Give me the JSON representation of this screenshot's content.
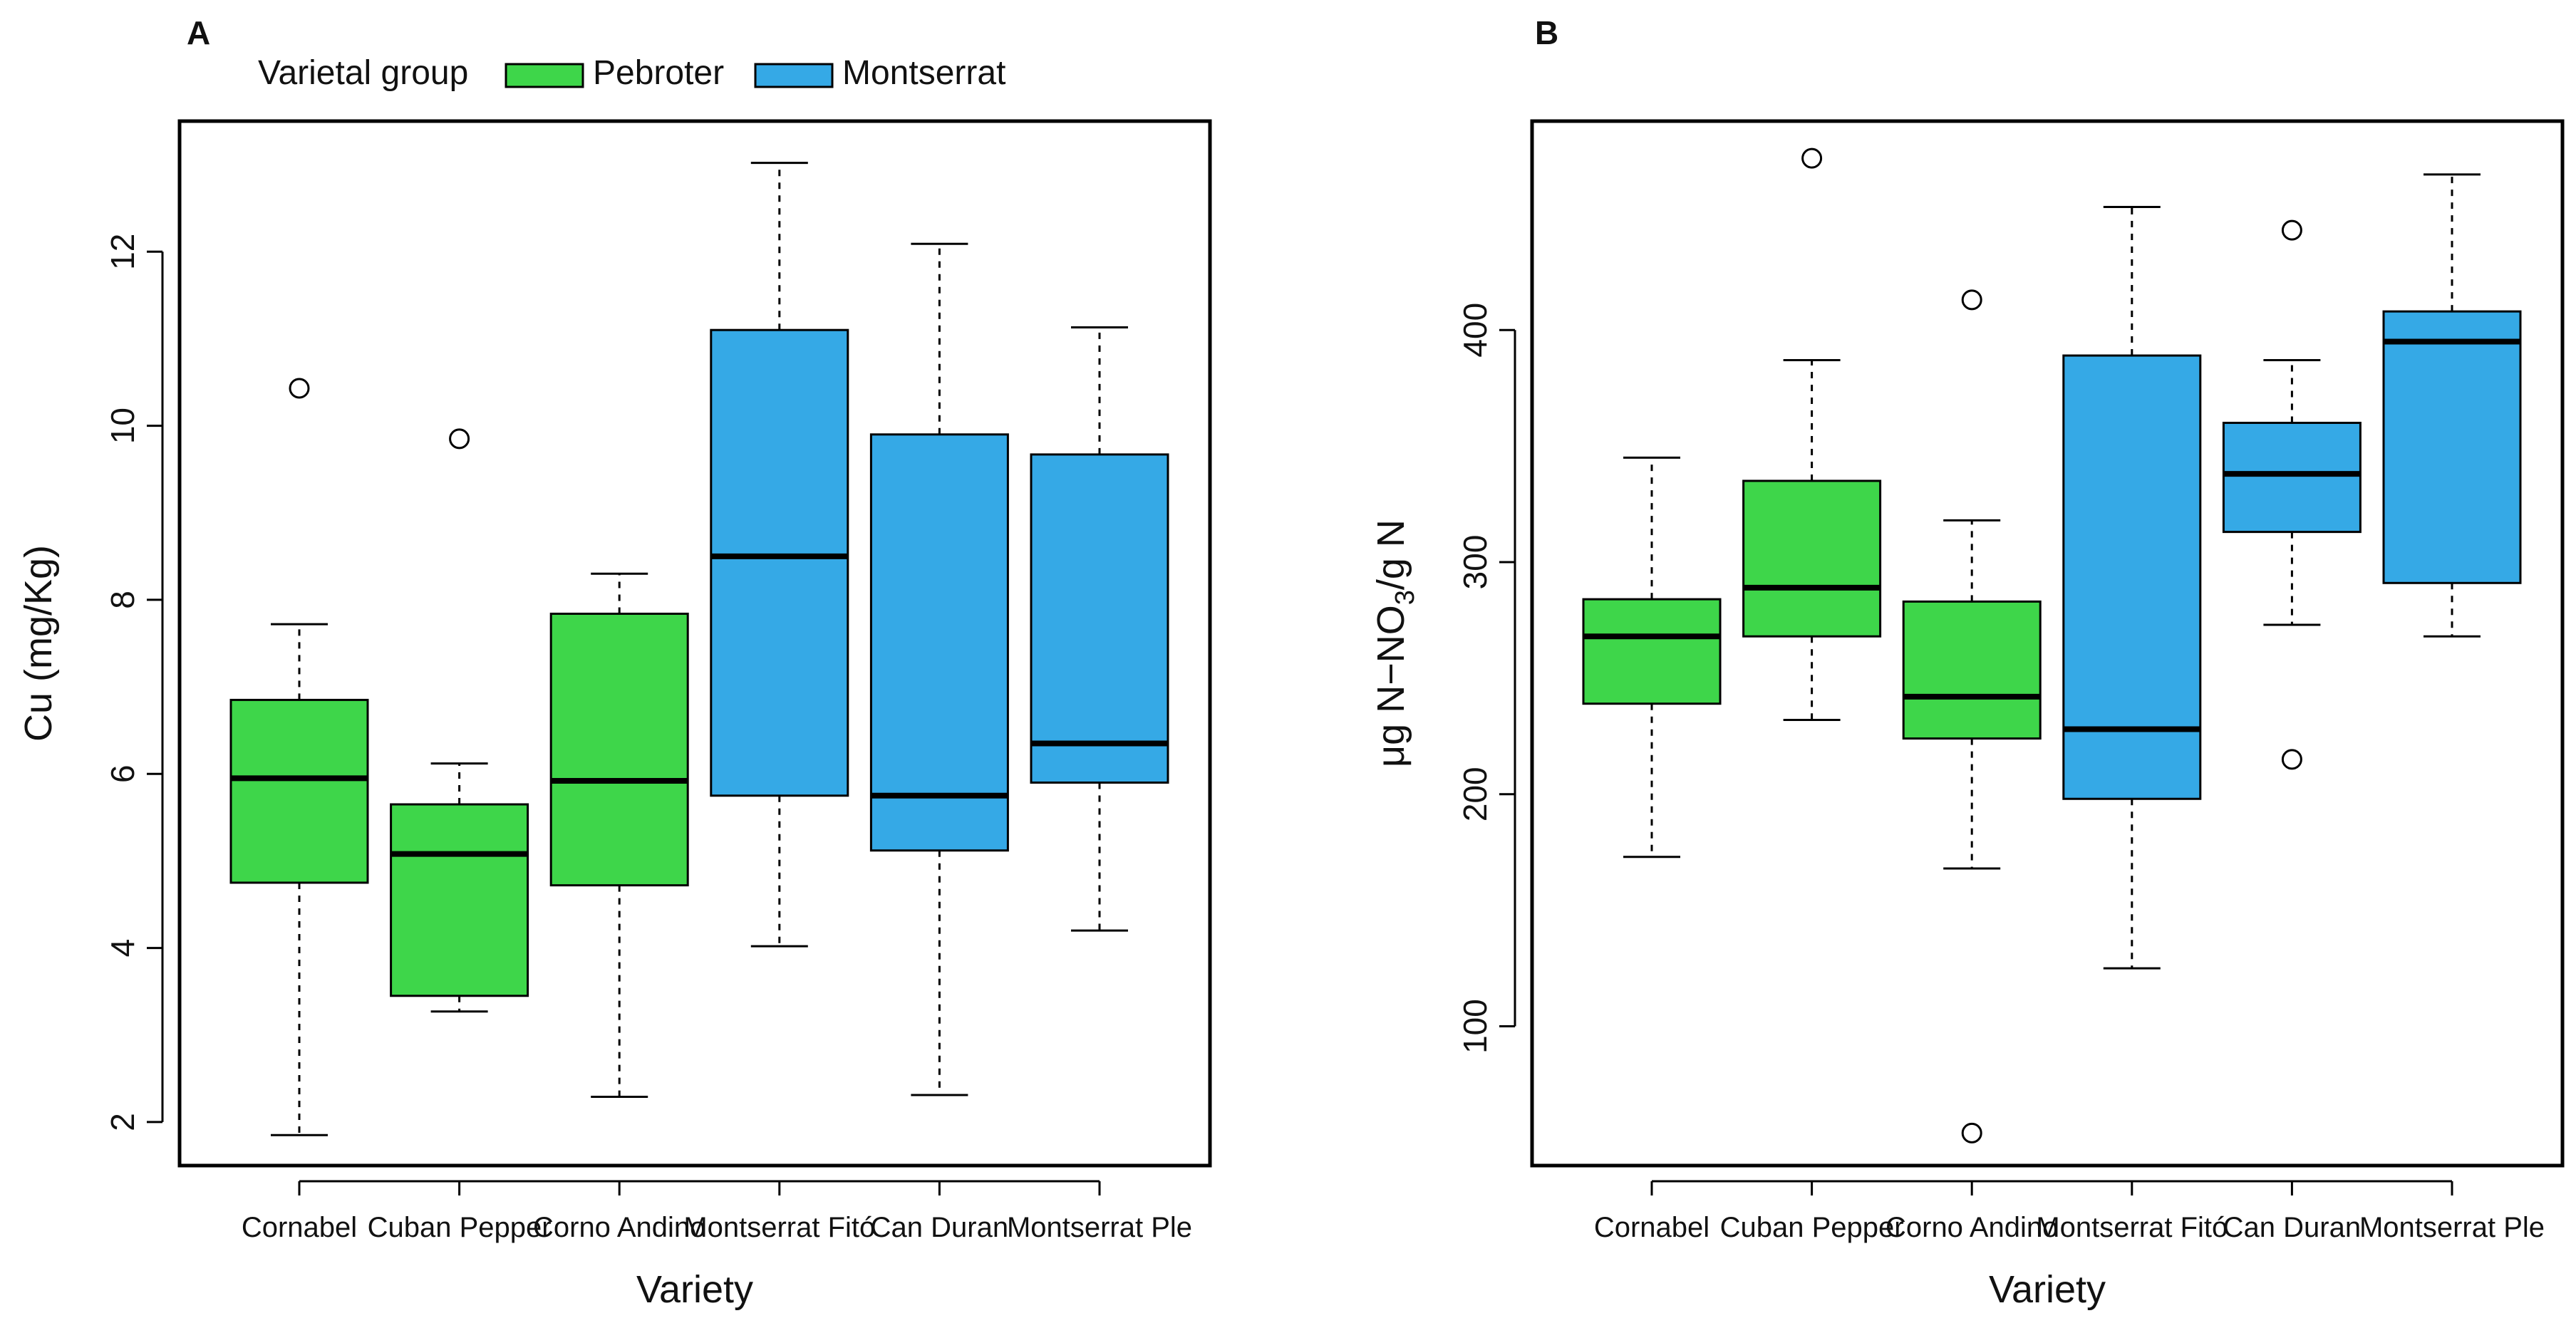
{
  "legend": {
    "title": "Varietal group",
    "entries": [
      {
        "label": "Pebroter",
        "color": "#3ed64a"
      },
      {
        "label": "Montserrat",
        "color": "#35a9e6"
      }
    ]
  },
  "colors": {
    "Pebroter": "#3ed64a",
    "Montserrat": "#35a9e6"
  },
  "chart_data": [
    {
      "type": "boxplot",
      "panel": "A",
      "xlabel": "Variety",
      "ylabel": "Cu (mg/Kg)",
      "ylim": [
        1.5,
        13.5
      ],
      "yticks": [
        2,
        4,
        6,
        8,
        10,
        12
      ],
      "tick_labels": [
        "2",
        "4",
        "6",
        "8",
        "10",
        "12"
      ],
      "categories": [
        "Cornabel",
        "Cuban Pepper",
        "Corno Andino",
        "Montserrat Fitó",
        "Can Duran",
        "Montserrat Ple"
      ],
      "groups": [
        "Pebroter",
        "Pebroter",
        "Pebroter",
        "Montserrat",
        "Montserrat",
        "Montserrat"
      ],
      "boxes": [
        {
          "whisker_low": 1.85,
          "q1": 4.75,
          "median": 5.95,
          "q3": 6.85,
          "whisker_high": 7.72,
          "outliers": [
            10.43
          ]
        },
        {
          "whisker_low": 3.27,
          "q1": 3.45,
          "median": 5.08,
          "q3": 5.65,
          "whisker_high": 6.12,
          "outliers": [
            9.85
          ]
        },
        {
          "whisker_low": 2.29,
          "q1": 4.72,
          "median": 5.92,
          "q3": 7.84,
          "whisker_high": 8.3,
          "outliers": []
        },
        {
          "whisker_low": 4.02,
          "q1": 5.75,
          "median": 8.5,
          "q3": 11.1,
          "whisker_high": 13.02,
          "outliers": []
        },
        {
          "whisker_low": 2.31,
          "q1": 5.12,
          "median": 5.75,
          "q3": 9.9,
          "whisker_high": 12.09,
          "outliers": []
        },
        {
          "whisker_low": 4.2,
          "q1": 5.9,
          "median": 6.35,
          "q3": 9.67,
          "whisker_high": 11.13,
          "outliers": []
        }
      ]
    },
    {
      "type": "boxplot",
      "panel": "B",
      "xlabel": "Variety",
      "ylabel_main": "μg N−NO",
      "ylabel_sub": "3",
      "ylabel_tail": "/g N",
      "ylim": [
        40,
        490
      ],
      "yticks": [
        100,
        200,
        300,
        400
      ],
      "tick_labels": [
        "100",
        "200",
        "300",
        "400"
      ],
      "categories": [
        "Cornabel",
        "Cuban Pepper",
        "Corno Andino",
        "Montserrat Fitó",
        "Can Duran",
        "Montserrat Ple"
      ],
      "groups": [
        "Pebroter",
        "Pebroter",
        "Pebroter",
        "Montserrat",
        "Montserrat",
        "Montserrat"
      ],
      "boxes": [
        {
          "whisker_low": 173,
          "q1": 239,
          "median": 268,
          "q3": 284,
          "whisker_high": 345,
          "outliers": []
        },
        {
          "whisker_low": 232,
          "q1": 268,
          "median": 289,
          "q3": 335,
          "whisker_high": 387,
          "outliers": [
            474
          ]
        },
        {
          "whisker_low": 168,
          "q1": 224,
          "median": 242,
          "q3": 283,
          "whisker_high": 318,
          "outliers": [
            413,
            54
          ]
        },
        {
          "whisker_low": 125,
          "q1": 198,
          "median": 228,
          "q3": 389,
          "whisker_high": 453,
          "outliers": []
        },
        {
          "whisker_low": 273,
          "q1": 313,
          "median": 338,
          "q3": 360,
          "whisker_high": 387,
          "outliers": [
            443,
            215
          ]
        },
        {
          "whisker_low": 268,
          "q1": 291,
          "median": 395,
          "q3": 408,
          "whisker_high": 467,
          "outliers": []
        }
      ]
    }
  ]
}
